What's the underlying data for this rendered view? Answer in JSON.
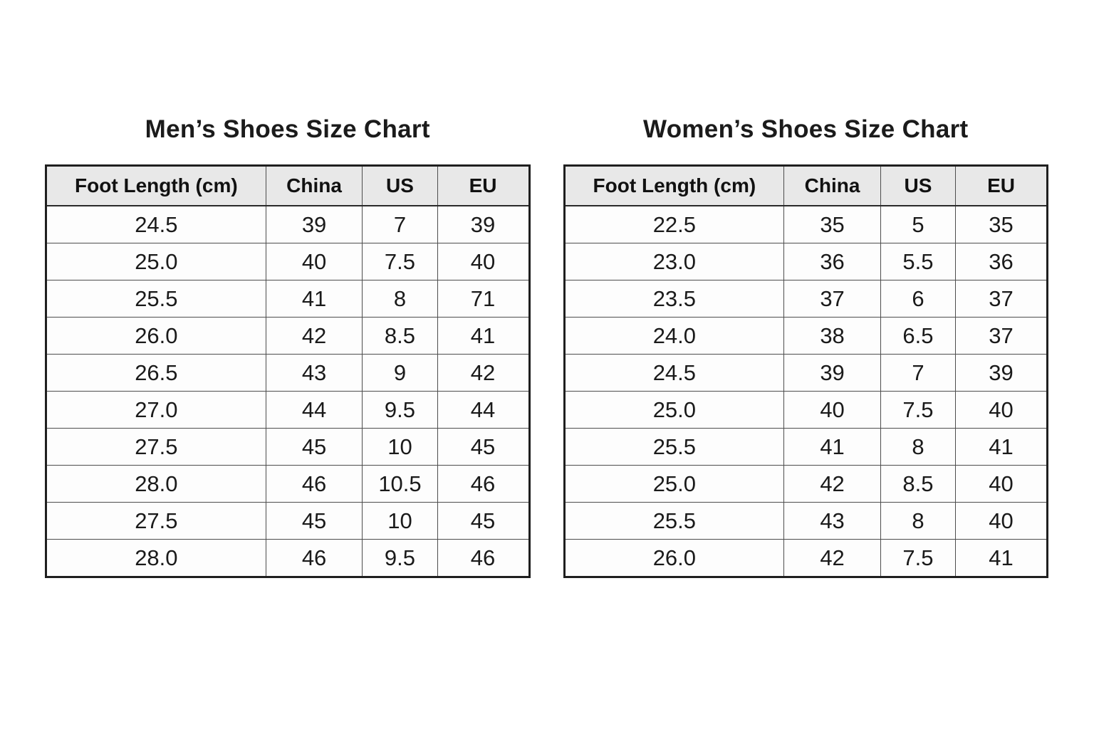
{
  "chart_data": [
    {
      "type": "table",
      "title": "Men’s Shoes Size Chart",
      "columns": [
        "Foot Length (cm)",
        "China",
        "US",
        "EU"
      ],
      "rows": [
        [
          "24.5",
          "39",
          "7",
          "39"
        ],
        [
          "25.0",
          "40",
          "7.5",
          "40"
        ],
        [
          "25.5",
          "41",
          "8",
          "71"
        ],
        [
          "26.0",
          "42",
          "8.5",
          "41"
        ],
        [
          "26.5",
          "43",
          "9",
          "42"
        ],
        [
          "27.0",
          "44",
          "9.5",
          "44"
        ],
        [
          "27.5",
          "45",
          "10",
          "45"
        ],
        [
          "28.0",
          "46",
          "10.5",
          "46"
        ],
        [
          "27.5",
          "45",
          "10",
          "45"
        ],
        [
          "28.0",
          "46",
          "9.5",
          "46"
        ]
      ]
    },
    {
      "type": "table",
      "title": "Women’s Shoes Size Chart",
      "columns": [
        "Foot Length (cm)",
        "China",
        "US",
        "EU"
      ],
      "rows": [
        [
          "22.5",
          "35",
          "5",
          "35"
        ],
        [
          "23.0",
          "36",
          "5.5",
          "36"
        ],
        [
          "23.5",
          "37",
          "6",
          "37"
        ],
        [
          "24.0",
          "38",
          "6.5",
          "37"
        ],
        [
          "24.5",
          "39",
          "7",
          "39"
        ],
        [
          "25.0",
          "40",
          "7.5",
          "40"
        ],
        [
          "25.5",
          "41",
          "8",
          "41"
        ],
        [
          "25.0",
          "42",
          "8.5",
          "40"
        ],
        [
          "25.5",
          "43",
          "8",
          "40"
        ],
        [
          "26.0",
          "42",
          "7.5",
          "41"
        ]
      ]
    }
  ],
  "colors": {
    "background": "#ffffff",
    "header_bg": "#e8e8e8",
    "outer_border": "#1f1f1f",
    "inner_border": "#4d4d4d",
    "text": "#1a1a1a"
  }
}
